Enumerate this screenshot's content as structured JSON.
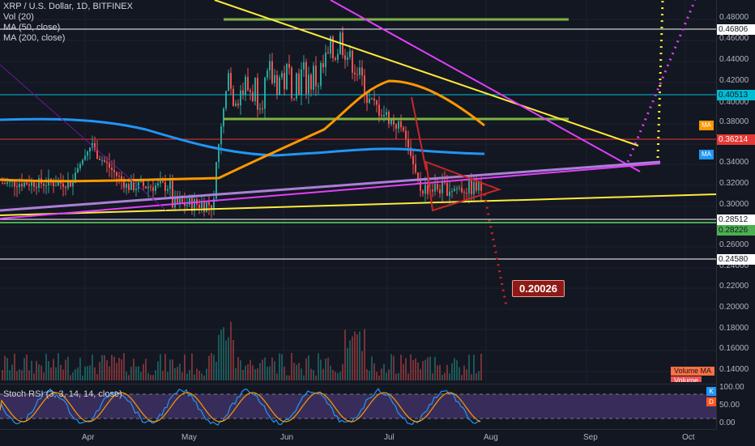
{
  "legend": {
    "symbol": "XRP / U.S. Dollar, 1D, BITFINEX",
    "vol": "Vol (20)",
    "ma50": "MA (50, close)",
    "ma200": "MA (200, close)"
  },
  "price_axis": {
    "ticks": [
      "0.48000",
      "0.46000",
      "0.44000",
      "0.42000",
      "0.40000",
      "0.38000",
      "0.34000",
      "0.32000",
      "0.30000",
      "0.28000",
      "0.26000",
      "0.24000",
      "0.22000",
      "0.20000",
      "0.18000",
      "0.16000",
      "0.14000"
    ],
    "highlighted": [
      {
        "value": "0.46806",
        "bg": "#ffffff",
        "fg": "#131722"
      },
      {
        "value": "0.40513",
        "bg": "#00bcd4",
        "fg": "#131722"
      },
      {
        "value": "0.36214",
        "bg": "#e53935",
        "fg": "#ffffff"
      },
      {
        "value": "0.28512",
        "bg": "#ffffff",
        "fg": "#131722"
      },
      {
        "value": "0.28226",
        "bg": "#4caf50",
        "fg": "#131722"
      },
      {
        "value": "0.24580",
        "bg": "#ffffff",
        "fg": "#131722"
      }
    ],
    "ma_badges": [
      "MA",
      "MA"
    ]
  },
  "rsi_axis": {
    "ticks": [
      "100.00",
      "50.00",
      "0.00"
    ]
  },
  "rsi": {
    "legend": "Stoch RSI (3, 3, 14, 14, close)",
    "k_label": "K",
    "d_label": "D"
  },
  "volume_labels": {
    "volume_ma": "Volume MA",
    "volume": "Volume"
  },
  "target": {
    "label": "0.20026"
  },
  "time_axis": {
    "labels": [
      "Apr",
      "May",
      "Jun",
      "Jul",
      "Aug",
      "Sep",
      "Oct"
    ]
  },
  "colors": {
    "bg": "#131722",
    "up": "#26a69a",
    "down": "#ef5350",
    "ma50": "#ff9800",
    "ma200": "#2196f3"
  }
}
